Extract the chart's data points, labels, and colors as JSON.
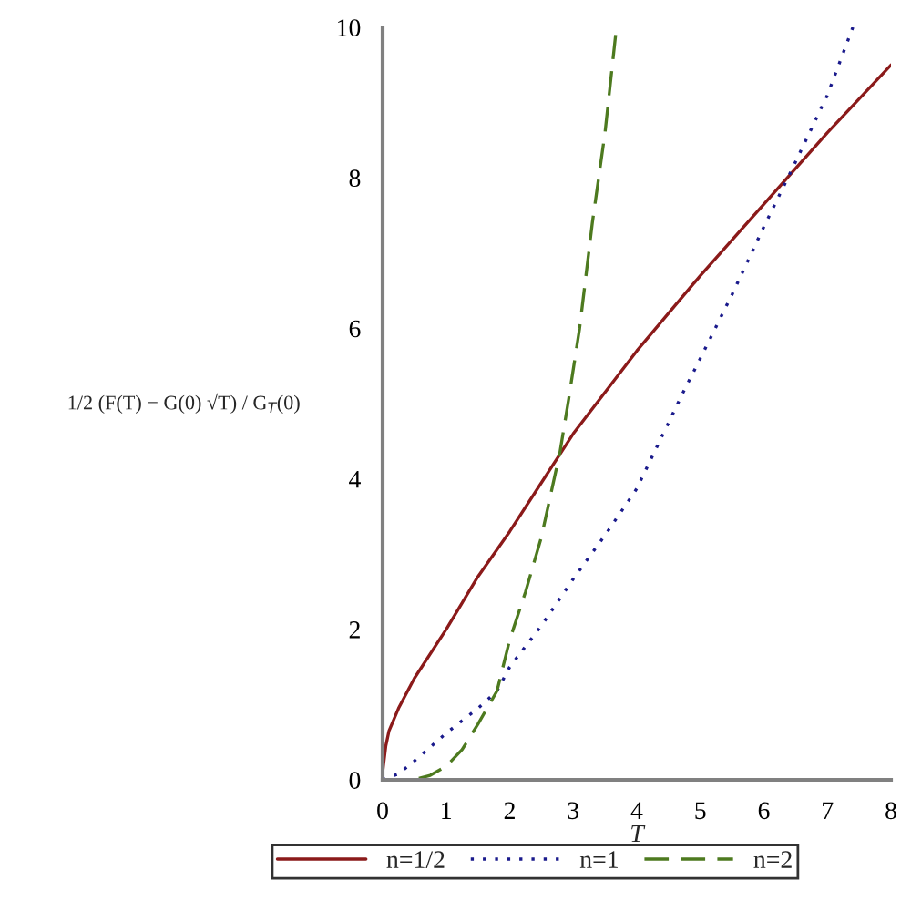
{
  "chart_data": {
    "type": "line",
    "xlabel": "T",
    "ylabel": "1/2 (F(T) − G(0) √T) / G$_{T}$(0)",
    "xlim": [
      0,
      8
    ],
    "ylim": [
      0,
      10
    ],
    "xticks": [
      0,
      1,
      2,
      3,
      4,
      5,
      6,
      7,
      8
    ],
    "yticks": [
      0,
      2,
      4,
      6,
      8,
      10
    ],
    "grid": false,
    "legend": "bottom",
    "series": [
      {
        "name": "n=1/2",
        "color": "#8b1a1a",
        "line_style": "solid",
        "x": [
          0,
          0.05,
          0.1,
          0.25,
          0.5,
          1,
          1.5,
          2,
          2.5,
          3,
          4,
          5,
          6,
          7,
          8
        ],
        "values": [
          0.1,
          0.45,
          0.65,
          0.95,
          1.35,
          2.0,
          2.7,
          3.3,
          3.95,
          4.6,
          5.7,
          6.7,
          7.65,
          8.6,
          9.5
        ]
      },
      {
        "name": "n=1",
        "color": "#1a1a8c",
        "line_style": "dotted",
        "x": [
          0,
          0.25,
          0.5,
          1,
          1.5,
          1.8,
          2,
          2.5,
          3,
          3.5,
          4,
          4.73,
          5,
          5.5,
          6,
          6.43,
          7,
          7.4
        ],
        "values": [
          0,
          0.08,
          0.25,
          0.62,
          0.95,
          1.18,
          1.5,
          2.05,
          2.67,
          3.25,
          3.87,
          5.15,
          5.6,
          6.45,
          7.35,
          8.09,
          9.1,
          10
        ]
      },
      {
        "name": "n=2",
        "color": "#4d7a1f",
        "line_style": "dashed",
        "x": [
          0,
          0.48,
          0.75,
          1,
          1.25,
          1.5,
          1.8,
          2,
          2.25,
          2.5,
          2.79,
          2.93,
          3.1,
          3.3,
          3.5,
          3.68
        ],
        "values": [
          0,
          0,
          0.06,
          0.18,
          0.4,
          0.74,
          1.18,
          1.86,
          2.5,
          3.23,
          4.35,
          5.07,
          6.0,
          7.4,
          8.6,
          10
        ]
      }
    ]
  }
}
